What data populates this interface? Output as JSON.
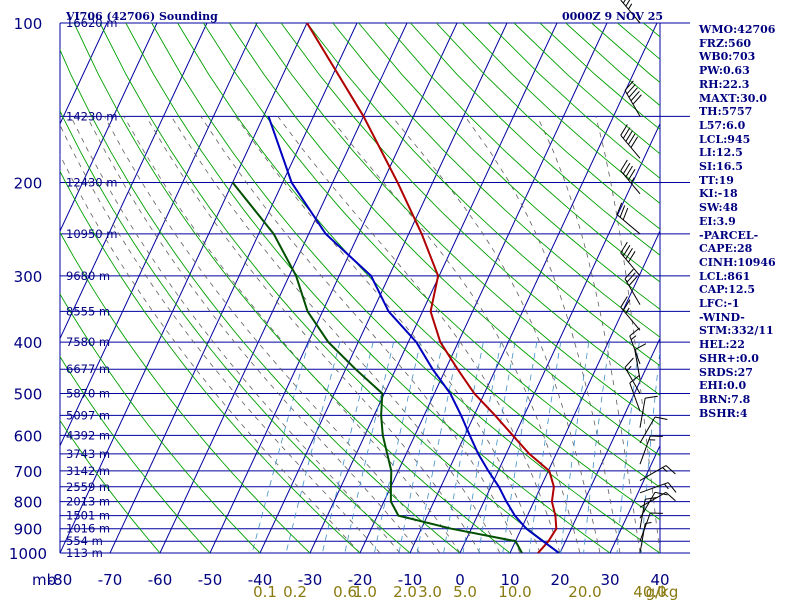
{
  "title_left": "VI706 (42706) Sounding",
  "title_right": "0000Z  9 NOV 25",
  "colors": {
    "frame": "#000080",
    "isobar": "#0000a0",
    "dry_adiabat": "#00a000",
    "moist_adiabat": "#606060",
    "mixing_ratio": "#4090c8",
    "temperature": "#b00000",
    "dewpoint": "#005000",
    "parcel": "#0000c0",
    "axis_labels": "#000080",
    "mixing_labels": "#8a7a10"
  },
  "stats": [
    "WMO:42706",
    "FRZ:560",
    "WB0:703",
    "PW:0.63",
    "RH:22.3",
    "MAXT:30.0",
    "TH:5757",
    "L57:6.0",
    "LCL:945",
    "LI:12.5",
    "SI:16.5",
    "TT:19",
    "KI:-18",
    "SW:48",
    "EI:3.9",
    "-PARCEL-",
    "CAPE:28",
    "CINH:10946",
    "LCL:861",
    "CAP:12.5",
    "LFC:-1",
    "-WIND-",
    "STM:332/11",
    "HEL:22",
    "SHR+:0.0",
    "SRDS:27",
    "EHI:0.0",
    "BRN:7.8",
    "BSHR:4"
  ],
  "chart_data": {
    "type": "line",
    "title": "VI706 (42706) Sounding",
    "subtitle": "0000Z  9 NOV 25",
    "x_axis": {
      "unit_label": "mb",
      "range": [
        -80,
        40
      ],
      "ticks": [
        -80,
        -70,
        -60,
        -50,
        -40,
        -30,
        -20,
        -10,
        0,
        10,
        20,
        30,
        40
      ]
    },
    "y_axis": {
      "scale": "log",
      "range": [
        1000,
        100
      ],
      "pressure_ticks": [
        100,
        200,
        300,
        400,
        500,
        600,
        700,
        800,
        900,
        1000
      ]
    },
    "height_labels": [
      {
        "p": 100,
        "label": "16620 m"
      },
      {
        "p": 150,
        "label": "14230 m"
      },
      {
        "p": 200,
        "label": "12430 m"
      },
      {
        "p": 250,
        "label": "10950 m"
      },
      {
        "p": 300,
        "label": "9680 m"
      },
      {
        "p": 350,
        "label": "8555 m"
      },
      {
        "p": 400,
        "label": "7580 m"
      },
      {
        "p": 450,
        "label": "6677 m"
      },
      {
        "p": 500,
        "label": "5870 m"
      },
      {
        "p": 550,
        "label": "5097 m"
      },
      {
        "p": 600,
        "label": "4392 m"
      },
      {
        "p": 650,
        "label": "3743 m"
      },
      {
        "p": 700,
        "label": "3142 m"
      },
      {
        "p": 750,
        "label": "2559 m"
      },
      {
        "p": 800,
        "label": "2013 m"
      },
      {
        "p": 850,
        "label": "1501 m"
      },
      {
        "p": 900,
        "label": "1016 m"
      },
      {
        "p": 950,
        "label": "554 m"
      },
      {
        "p": 1000,
        "label": "113 m"
      }
    ],
    "mixing_ratio_labels": [
      {
        "value": "0.1",
        "temp": -39
      },
      {
        "value": "0.2",
        "temp": -33
      },
      {
        "value": "0.6",
        "temp": -23
      },
      {
        "value": "1.0",
        "temp": -19
      },
      {
        "value": "2.0",
        "temp": -11
      },
      {
        "value": "3.0",
        "temp": -6
      },
      {
        "value": "5.0",
        "temp": 1
      },
      {
        "value": "10.0",
        "temp": 11
      },
      {
        "value": "20.0",
        "temp": 25
      },
      {
        "value": "40.0",
        "temp": 38
      }
    ],
    "mixing_unit": "g/kg",
    "series": [
      {
        "key": "temperature",
        "points": [
          [
            1000,
            15.6
          ],
          [
            950,
            16.6
          ],
          [
            900,
            17.0
          ],
          [
            850,
            15.6
          ],
          [
            800,
            13.6
          ],
          [
            750,
            12.6
          ],
          [
            700,
            10.2
          ],
          [
            650,
            4.6
          ],
          [
            600,
            -0.4
          ],
          [
            550,
            -5.8
          ],
          [
            500,
            -12.0
          ],
          [
            450,
            -17.6
          ],
          [
            400,
            -23.6
          ],
          [
            350,
            -28.4
          ],
          [
            300,
            -30.2
          ],
          [
            250,
            -37.4
          ],
          [
            200,
            -47.0
          ],
          [
            150,
            -60.0
          ],
          [
            100,
            -80.0
          ]
        ]
      },
      {
        "key": "dewpoint",
        "points": [
          [
            1000,
            12.4
          ],
          [
            950,
            10.0
          ],
          [
            900,
            -4.0
          ],
          [
            850,
            -15.8
          ],
          [
            800,
            -18.6
          ],
          [
            750,
            -20.0
          ],
          [
            700,
            -21.4
          ],
          [
            650,
            -23.8
          ],
          [
            600,
            -26.4
          ],
          [
            550,
            -28.6
          ],
          [
            500,
            -30.4
          ],
          [
            450,
            -38.0
          ],
          [
            400,
            -46.0
          ],
          [
            350,
            -53.0
          ],
          [
            300,
            -58.6
          ],
          [
            250,
            -67.0
          ],
          [
            200,
            -80.0
          ]
        ]
      },
      {
        "key": "parcel",
        "points": [
          [
            1000,
            19.8
          ],
          [
            950,
            15.5
          ],
          [
            900,
            11.0
          ],
          [
            850,
            7.5
          ],
          [
            800,
            4.5
          ],
          [
            750,
            1.6
          ],
          [
            700,
            -2.0
          ],
          [
            650,
            -5.6
          ],
          [
            600,
            -9.0
          ],
          [
            550,
            -12.6
          ],
          [
            500,
            -16.8
          ],
          [
            450,
            -22.6
          ],
          [
            400,
            -28.4
          ],
          [
            350,
            -36.8
          ],
          [
            300,
            -43.6
          ],
          [
            250,
            -56.6
          ],
          [
            200,
            -68.2
          ],
          [
            150,
            -79.0
          ]
        ]
      }
    ],
    "wind_barbs": [
      {
        "p": 100,
        "dir": 320,
        "kt": 35
      },
      {
        "p": 150,
        "dir": 330,
        "kt": 50
      },
      {
        "p": 180,
        "dir": 320,
        "kt": 50
      },
      {
        "p": 210,
        "dir": 320,
        "kt": 45
      },
      {
        "p": 250,
        "dir": 310,
        "kt": 30
      },
      {
        "p": 300,
        "dir": 320,
        "kt": 40
      },
      {
        "p": 340,
        "dir": 330,
        "kt": 30
      },
      {
        "p": 380,
        "dir": 320,
        "kt": 25
      },
      {
        "p": 440,
        "dir": 340,
        "kt": 15
      },
      {
        "p": 470,
        "dir": 350,
        "kt": 10
      },
      {
        "p": 500,
        "dir": 330,
        "kt": 15
      },
      {
        "p": 540,
        "dir": 340,
        "kt": 10
      },
      {
        "p": 580,
        "dir": 10,
        "kt": 10
      },
      {
        "p": 620,
        "dir": 30,
        "kt": 10
      },
      {
        "p": 680,
        "dir": 20,
        "kt": 15
      },
      {
        "p": 730,
        "dir": 60,
        "kt": 15
      },
      {
        "p": 770,
        "dir": 70,
        "kt": 15
      },
      {
        "p": 820,
        "dir": 60,
        "kt": 10
      },
      {
        "p": 860,
        "dir": 30,
        "kt": 10
      },
      {
        "p": 900,
        "dir": 10,
        "kt": 10
      },
      {
        "p": 950,
        "dir": 20,
        "kt": 10
      },
      {
        "p": 1000,
        "dir": 10,
        "kt": 5
      }
    ]
  }
}
